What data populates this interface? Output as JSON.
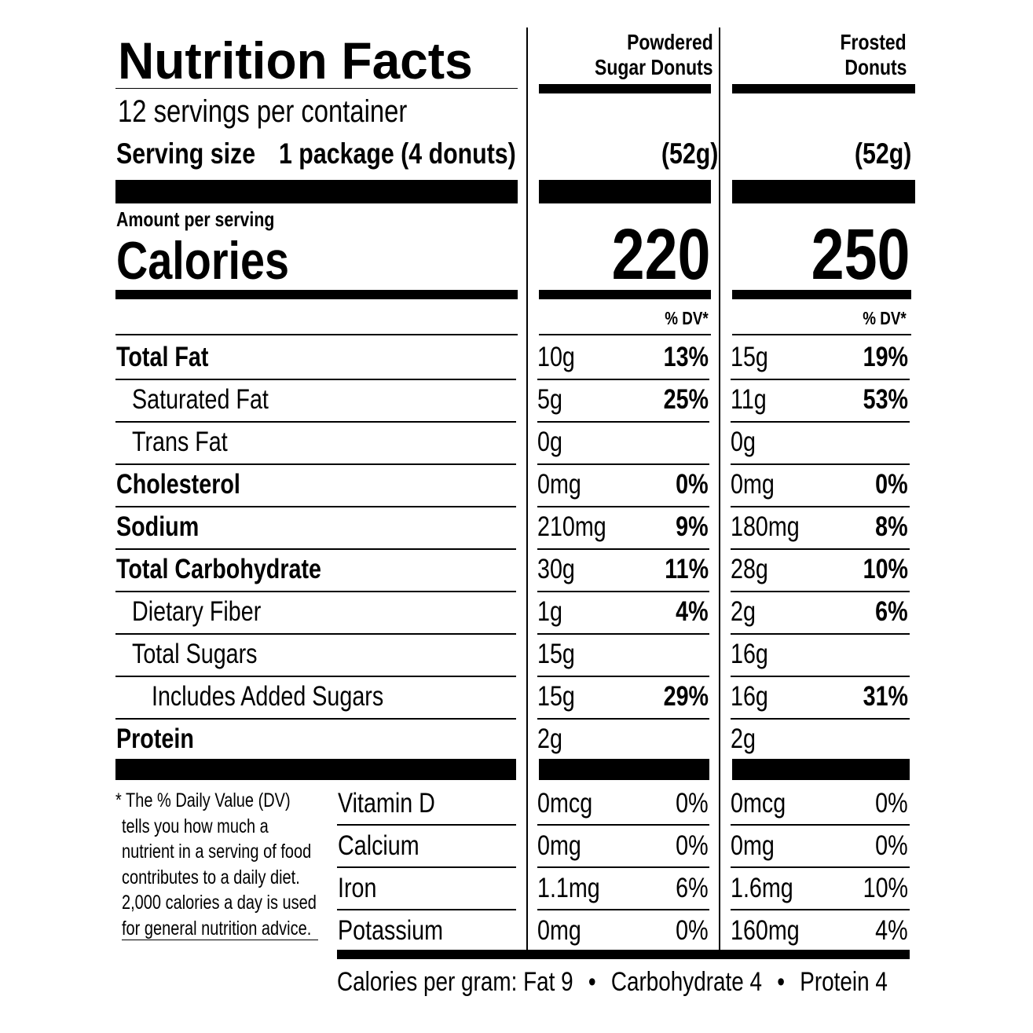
{
  "header": {
    "title": "Nutrition Facts",
    "servings": "12 servings per container",
    "serving_size_label": "Serving size",
    "serving_size_value": "1 package (4 donuts)"
  },
  "products": [
    {
      "name_line1": "Powdered",
      "name_line2": "Sugar Donuts",
      "serving": "(52g)",
      "calories": "220"
    },
    {
      "name_line1": "Frosted",
      "name_line2": "Donuts",
      "serving": "(52g)",
      "calories": "250"
    }
  ],
  "calories": {
    "amount_label": "Amount per serving",
    "label": "Calories"
  },
  "dv_header": "% DV*",
  "nutrients": [
    {
      "label": "Total Fat",
      "bold": true,
      "indent": 0,
      "p1_amt": "10g",
      "p1_dv": "13%",
      "p2_amt": "15g",
      "p2_dv": "19%"
    },
    {
      "label": "Saturated Fat",
      "bold": false,
      "indent": 1,
      "p1_amt": "5g",
      "p1_dv": "25%",
      "p2_amt": "11g",
      "p2_dv": "53%"
    },
    {
      "label": "Trans Fat",
      "bold": false,
      "indent": 1,
      "p1_amt": "0g",
      "p1_dv": "",
      "p2_amt": "0g",
      "p2_dv": ""
    },
    {
      "label": "Cholesterol",
      "bold": true,
      "indent": 0,
      "p1_amt": "0mg",
      "p1_dv": "0%",
      "p2_amt": "0mg",
      "p2_dv": "0%"
    },
    {
      "label": "Sodium",
      "bold": true,
      "indent": 0,
      "p1_amt": "210mg",
      "p1_dv": "9%",
      "p2_amt": "180mg",
      "p2_dv": "8%"
    },
    {
      "label": "Total Carbohydrate",
      "bold": true,
      "indent": 0,
      "p1_amt": "30g",
      "p1_dv": "11%",
      "p2_amt": "28g",
      "p2_dv": "10%"
    },
    {
      "label": "Dietary Fiber",
      "bold": false,
      "indent": 1,
      "p1_amt": "1g",
      "p1_dv": "4%",
      "p2_amt": "2g",
      "p2_dv": "6%"
    },
    {
      "label": "Total Sugars",
      "bold": false,
      "indent": 1,
      "p1_amt": "15g",
      "p1_dv": "",
      "p2_amt": "16g",
      "p2_dv": ""
    },
    {
      "label": "Includes Added Sugars",
      "bold": false,
      "indent": 2,
      "p1_amt": "15g",
      "p1_dv": "29%",
      "p2_amt": "16g",
      "p2_dv": "31%"
    },
    {
      "label": "Protein",
      "bold": true,
      "indent": 0,
      "p1_amt": "2g",
      "p1_dv": "",
      "p2_amt": "2g",
      "p2_dv": ""
    }
  ],
  "footnote": [
    "* The % Daily Value (DV)",
    "tells you how much a",
    "nutrient in a serving of food",
    "contributes to a daily diet.",
    "2,000 calories a day is used",
    "for general nutrition advice."
  ],
  "vitamins": [
    {
      "label": "Vitamin D",
      "p1_amt": "0mcg",
      "p1_dv": "0%",
      "p2_amt": "0mcg",
      "p2_dv": "0%"
    },
    {
      "label": "Calcium",
      "p1_amt": "0mg",
      "p1_dv": "0%",
      "p2_amt": "0mg",
      "p2_dv": "0%"
    },
    {
      "label": "Iron",
      "p1_amt": "1.1mg",
      "p1_dv": "6%",
      "p2_amt": "1.6mg",
      "p2_dv": "10%"
    },
    {
      "label": "Potassium",
      "p1_amt": "0mg",
      "p1_dv": "0%",
      "p2_amt": "160mg",
      "p2_dv": "4%"
    }
  ],
  "calories_per_gram": {
    "prefix": "Calories per gram:",
    "fat": "Fat 9",
    "carb": "Carbohydrate 4",
    "protein": "Protein 4",
    "separator": "•"
  }
}
